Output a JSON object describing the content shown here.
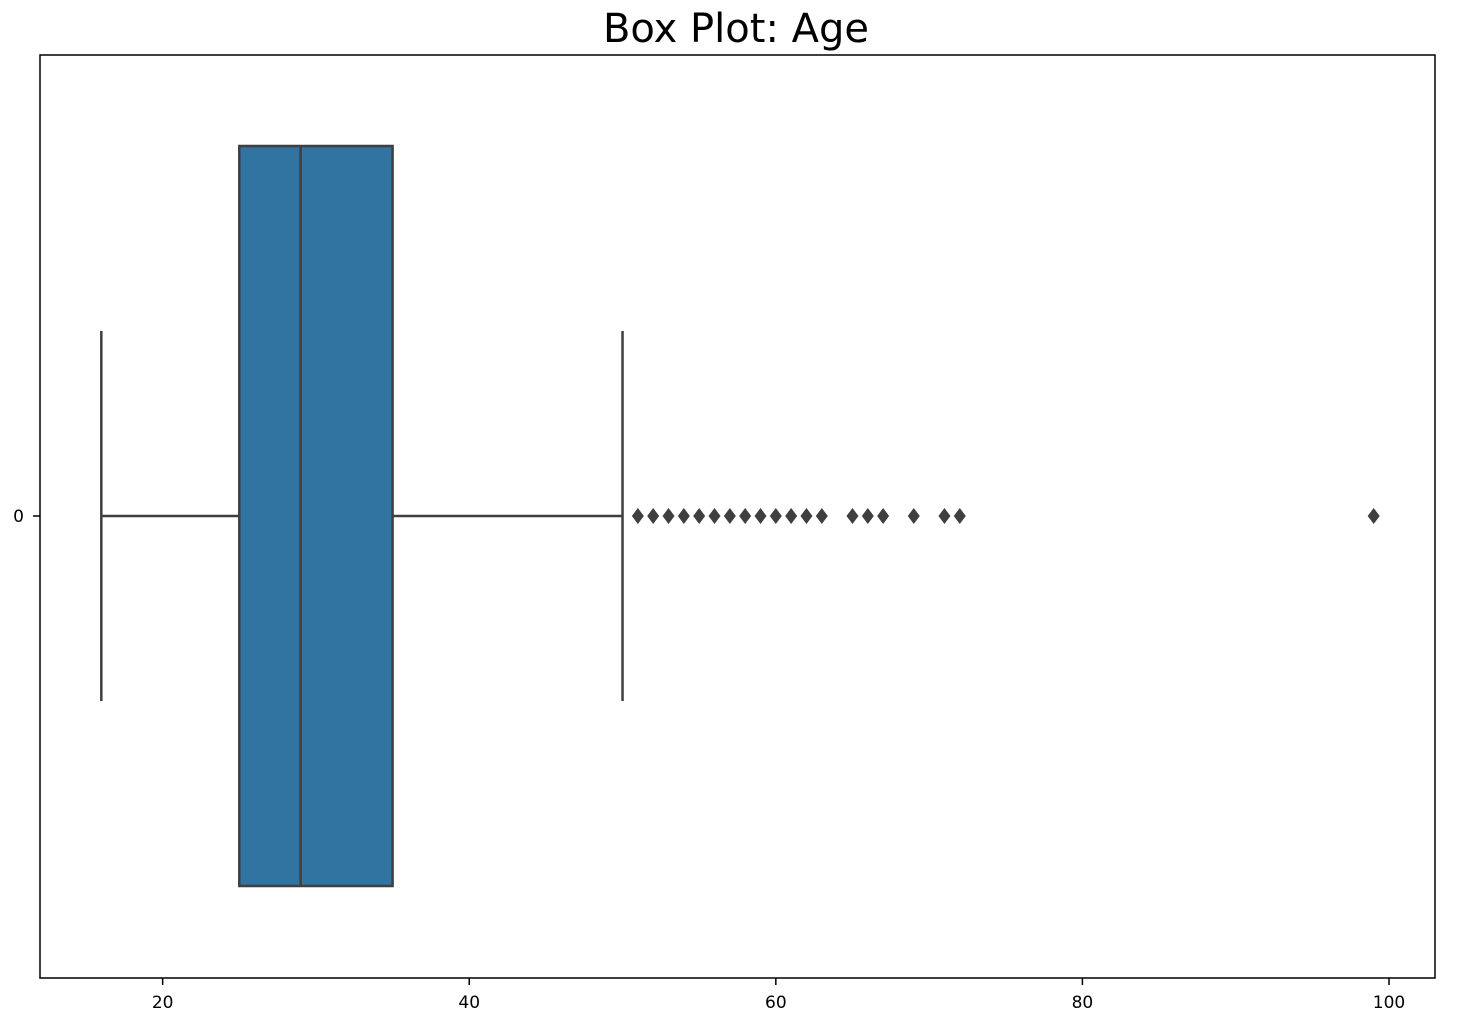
{
  "chart_data": {
    "type": "box",
    "orientation": "horizontal",
    "title": "Box Plot: Age",
    "xlabel": "",
    "ylabel": "",
    "xlim": [
      12,
      103
    ],
    "x_ticks": [
      20,
      40,
      60,
      80,
      100
    ],
    "categories": [
      "0"
    ],
    "series": [
      {
        "category": "0",
        "whisker_low": 16,
        "q1": 25,
        "median": 29,
        "q3": 35,
        "whisker_high": 50,
        "outliers": [
          51,
          52,
          53,
          54,
          55,
          56,
          57,
          58,
          59,
          60,
          61,
          62,
          63,
          65,
          66,
          67,
          69,
          71,
          72,
          99
        ]
      }
    ],
    "grid": false,
    "legend": "none",
    "colors": {
      "box_fill": "#3274a1",
      "line": "#3f3f3f",
      "outlier": "#3f3f3f",
      "axes": "#000000"
    }
  }
}
